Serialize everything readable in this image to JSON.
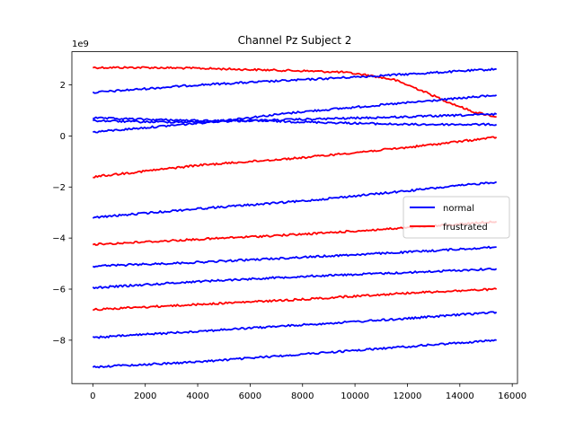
{
  "chart_data": {
    "type": "line",
    "title": "Channel Pz Subject 2",
    "xlabel": "",
    "ylabel": "",
    "y_scale_label": "1e9",
    "xlim": [
      -800,
      16200
    ],
    "ylim": [
      -9.7,
      3.3
    ],
    "x_ticks": [
      0,
      2000,
      4000,
      6000,
      8000,
      10000,
      12000,
      14000,
      16000
    ],
    "x_tick_labels": [
      "0",
      "2000",
      "4000",
      "6000",
      "8000",
      "10000",
      "12000",
      "14000",
      "16000"
    ],
    "y_ticks": [
      -8,
      -6,
      -4,
      -2,
      0,
      2
    ],
    "y_tick_labels": [
      "−8",
      "−6",
      "−4",
      "−2",
      "0",
      "2"
    ],
    "grid": false,
    "legend": {
      "placement": "center-right",
      "entries": [
        {
          "label": "normal",
          "color": "#0000ff"
        },
        {
          "label": "frustrated",
          "color": "#ff0000"
        }
      ]
    },
    "series": [
      {
        "group": "frustrated",
        "color": "#ff0000",
        "x": [
          0,
          2000,
          4000,
          6000,
          8000,
          9500,
          10500,
          11500,
          12500,
          13500,
          14500,
          15400
        ],
        "y": [
          2.68,
          2.68,
          2.65,
          2.6,
          2.55,
          2.5,
          2.38,
          2.2,
          1.8,
          1.35,
          0.95,
          0.75
        ]
      },
      {
        "group": "normal",
        "color": "#0000ff",
        "x": [
          0,
          4000,
          8000,
          12000,
          15400
        ],
        "y": [
          1.7,
          2.0,
          2.2,
          2.42,
          2.62
        ]
      },
      {
        "group": "normal",
        "color": "#0000ff",
        "x": [
          0,
          4000,
          8000,
          12000,
          15400
        ],
        "y": [
          0.15,
          0.5,
          0.95,
          1.3,
          1.6
        ]
      },
      {
        "group": "normal",
        "color": "#0000ff",
        "x": [
          0,
          2000,
          4000,
          6000,
          8000,
          10000,
          12000,
          14000,
          15400
        ],
        "y": [
          0.7,
          0.65,
          0.6,
          0.6,
          0.55,
          0.5,
          0.45,
          0.45,
          0.45
        ]
      },
      {
        "group": "normal",
        "color": "#0000ff",
        "x": [
          0,
          2000,
          4000,
          8000,
          12000,
          15400
        ],
        "y": [
          0.6,
          0.55,
          0.55,
          0.65,
          0.75,
          0.85
        ]
      },
      {
        "group": "frustrated",
        "color": "#ff0000",
        "x": [
          0,
          4000,
          8000,
          12000,
          15400
        ],
        "y": [
          -1.6,
          -1.15,
          -0.85,
          -0.45,
          -0.05
        ]
      },
      {
        "group": "normal",
        "color": "#0000ff",
        "x": [
          0,
          4000,
          8000,
          12000,
          15400
        ],
        "y": [
          -3.2,
          -2.85,
          -2.55,
          -2.15,
          -1.8
        ]
      },
      {
        "group": "frustrated",
        "color": "#ff0000",
        "x": [
          0,
          4000,
          8000,
          12000,
          15400
        ],
        "y": [
          -4.25,
          -4.05,
          -3.85,
          -3.6,
          -3.35
        ]
      },
      {
        "group": "normal",
        "color": "#0000ff",
        "x": [
          0,
          4000,
          8000,
          12000,
          15400
        ],
        "y": [
          -5.1,
          -4.95,
          -4.75,
          -4.55,
          -4.35
        ]
      },
      {
        "group": "normal",
        "color": "#0000ff",
        "x": [
          0,
          4000,
          8000,
          12000,
          15400
        ],
        "y": [
          -5.95,
          -5.7,
          -5.5,
          -5.35,
          -5.2
        ]
      },
      {
        "group": "frustrated",
        "color": "#ff0000",
        "x": [
          0,
          4000,
          8000,
          12000,
          15400
        ],
        "y": [
          -6.8,
          -6.6,
          -6.4,
          -6.15,
          -6.0
        ]
      },
      {
        "group": "normal",
        "color": "#0000ff",
        "x": [
          0,
          4000,
          8000,
          12000,
          15400
        ],
        "y": [
          -7.9,
          -7.65,
          -7.4,
          -7.15,
          -6.9
        ]
      },
      {
        "group": "normal",
        "color": "#0000ff",
        "x": [
          0,
          4000,
          8000,
          12000,
          15400
        ],
        "y": [
          -9.05,
          -8.85,
          -8.55,
          -8.25,
          -8.0
        ]
      }
    ]
  }
}
